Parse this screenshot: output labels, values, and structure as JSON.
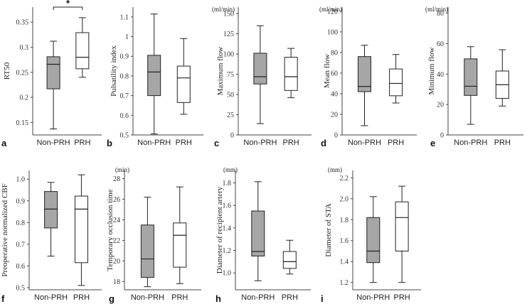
{
  "figure": {
    "group_colors": {
      "Non-PRH": "#a6a6a6",
      "PRH": "#ffffff"
    }
  },
  "chart_data": [
    {
      "label": "a",
      "type": "box",
      "ylabel": "RT50",
      "unit": "",
      "ylim": [
        0.125,
        0.38
      ],
      "yticks": [
        "0.15",
        "0.2",
        "0.25",
        "0.3",
        "0.35"
      ],
      "categories": [
        "Non-PRH",
        "PRH"
      ],
      "boxes": [
        {
          "min": 0.137,
          "q1": 0.217,
          "median": 0.266,
          "q3": 0.281,
          "max": 0.312
        },
        {
          "min": 0.24,
          "q1": 0.257,
          "median": 0.28,
          "q3": 0.329,
          "max": 0.359
        }
      ],
      "significance": "*"
    },
    {
      "label": "b",
      "type": "box",
      "ylabel": "Pulsatility index",
      "unit": "",
      "ylim": [
        0.5,
        1.15
      ],
      "yticks": [
        "0.5",
        "0.6",
        "0.7",
        "0.8",
        "0.9",
        "1",
        "1.1"
      ],
      "categories": [
        "Non-PRH",
        "PRH"
      ],
      "boxes": [
        {
          "min": 0.505,
          "q1": 0.7,
          "median": 0.82,
          "q3": 0.905,
          "max": 1.115
        },
        {
          "min": 0.605,
          "q1": 0.665,
          "median": 0.79,
          "q3": 0.85,
          "max": 0.99
        }
      ]
    },
    {
      "label": "c",
      "type": "box",
      "ylabel": "Maximum flow",
      "unit": "(ml/min)",
      "ylim": [
        0,
        158
      ],
      "yticks": [
        "0",
        "25",
        "50",
        "75",
        "100",
        "125",
        "150"
      ],
      "categories": [
        "Non-PRH",
        "PRH"
      ],
      "boxes": [
        {
          "min": 14,
          "q1": 63,
          "median": 72,
          "q3": 101,
          "max": 135
        },
        {
          "min": 46,
          "q1": 55,
          "median": 72,
          "q3": 96,
          "max": 107
        }
      ]
    },
    {
      "label": "d",
      "type": "box",
      "ylabel": "Mean flow",
      "unit": "(ml/min)",
      "ylim": [
        0,
        124
      ],
      "yticks": [
        "0",
        "20",
        "40",
        "60",
        "80",
        "100",
        "120"
      ],
      "categories": [
        "Non-PRH",
        "PRH"
      ],
      "boxes": [
        {
          "min": 9,
          "q1": 42,
          "median": 47,
          "q3": 76,
          "max": 87
        },
        {
          "min": 31,
          "q1": 38,
          "median": 50,
          "q3": 64,
          "max": 78
        }
      ]
    },
    {
      "label": "e",
      "type": "box",
      "ylabel": "Minimum flow",
      "unit": "(ml/min)",
      "ylim": [
        0,
        84
      ],
      "yticks": [
        "0",
        "20",
        "40",
        "60",
        "80"
      ],
      "categories": [
        "Non-PRH",
        "PRH"
      ],
      "boxes": [
        {
          "min": 7,
          "q1": 26,
          "median": 32,
          "q3": 50,
          "max": 58
        },
        {
          "min": 19,
          "q1": 24,
          "median": 33,
          "q3": 42,
          "max": 56
        }
      ]
    },
    {
      "label": "f",
      "type": "box",
      "ylabel": "Preoperative normalized CBF",
      "unit": "",
      "ylim": [
        0.49,
        1.04
      ],
      "yticks": [
        "0.5",
        "0.6",
        "0.7",
        "0.8",
        "0.9",
        "1.0"
      ],
      "categories": [
        "Non-PRH",
        "PRH"
      ],
      "boxes": [
        {
          "min": 0.645,
          "q1": 0.775,
          "median": 0.862,
          "q3": 0.943,
          "max": 0.985
        },
        {
          "min": 0.51,
          "q1": 0.615,
          "median": 0.862,
          "q3": 0.922,
          "max": 1.02
        }
      ]
    },
    {
      "label": "g",
      "type": "box",
      "ylabel": "Temporary occlusion time",
      "unit": "(min)",
      "ylim": [
        17.2,
        28.8
      ],
      "yticks": [
        "18",
        "20",
        "22",
        "24",
        "26",
        "28"
      ],
      "categories": [
        "Non-PRH",
        "PRH"
      ],
      "boxes": [
        {
          "min": 17.5,
          "q1": 18.4,
          "median": 20.2,
          "q3": 23.5,
          "max": 26.2
        },
        {
          "min": 17.8,
          "q1": 19.4,
          "median": 22.5,
          "q3": 23.7,
          "max": 27.2
        }
      ]
    },
    {
      "label": "h",
      "type": "box",
      "ylabel": "Diameter of recipient artery",
      "unit": "(mm)",
      "ylim": [
        0.85,
        1.91
      ],
      "yticks": [
        "1.0",
        "1.2",
        "1.4",
        "1.6",
        "1.8"
      ],
      "categories": [
        "Non-PRH",
        "PRH"
      ],
      "boxes": [
        {
          "min": 0.93,
          "q1": 1.15,
          "median": 1.19,
          "q3": 1.55,
          "max": 1.81
        },
        {
          "min": 0.99,
          "q1": 1.04,
          "median": 1.1,
          "q3": 1.19,
          "max": 1.29
        }
      ]
    },
    {
      "label": "i",
      "type": "box",
      "ylabel": "Diameter of STA",
      "unit": "(mm)",
      "ylim": [
        1.13,
        2.27
      ],
      "yticks": [
        "1.2",
        "1.4",
        "1.6",
        "1.8",
        "2.0",
        "2.2"
      ],
      "categories": [
        "Non-PRH",
        "PRH"
      ],
      "boxes": [
        {
          "min": 1.2,
          "q1": 1.39,
          "median": 1.5,
          "q3": 1.82,
          "max": 2.02
        },
        {
          "min": 1.2,
          "q1": 1.5,
          "median": 1.82,
          "q3": 1.97,
          "max": 2.12
        }
      ]
    }
  ]
}
